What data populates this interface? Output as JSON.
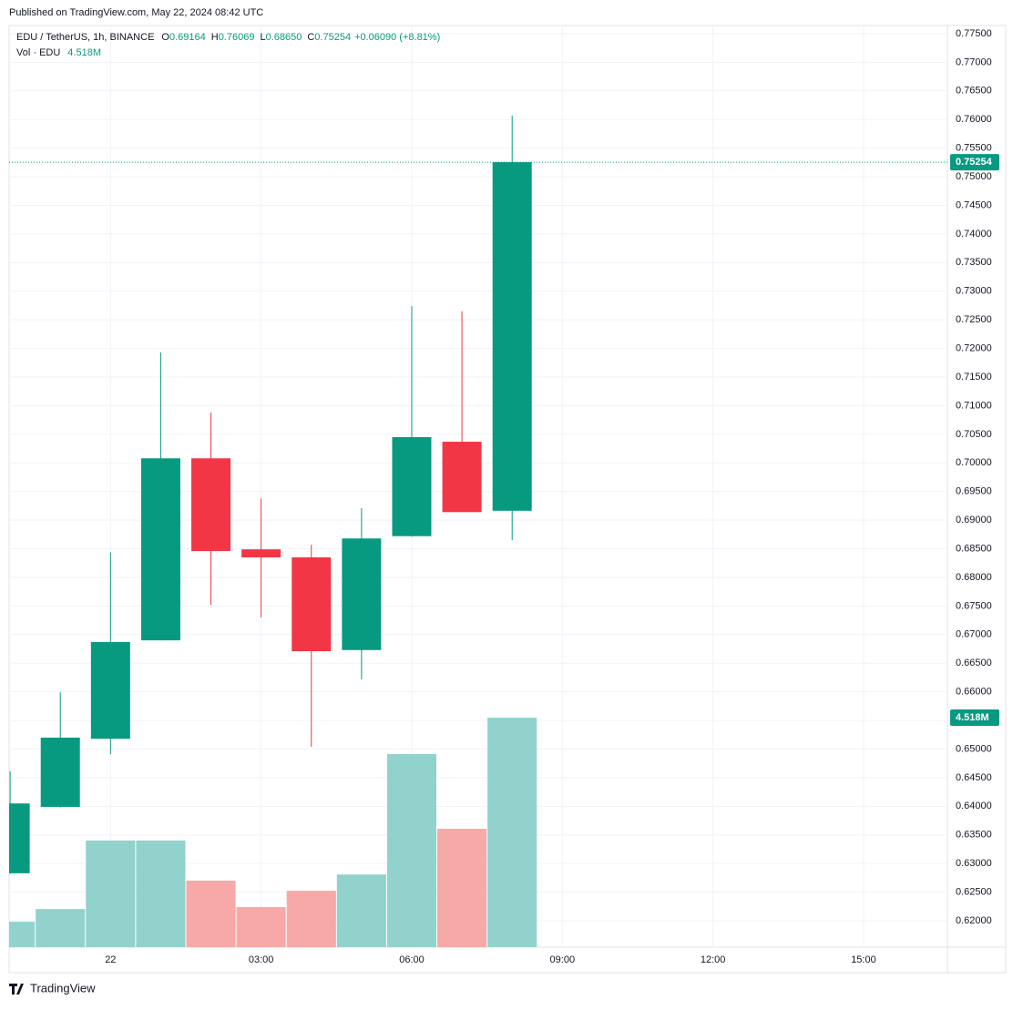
{
  "header": {
    "published": "Published on TradingView.com, May 22, 2024 08:42 UTC",
    "symbol": "EDU / TetherUS, 1h, BINANCE",
    "ohlc": [
      {
        "key": "O",
        "text": "0.69164"
      },
      {
        "key": "H",
        "text": "0.76069"
      },
      {
        "key": "L",
        "text": "0.68650"
      },
      {
        "key": "C",
        "text": "0.75254"
      }
    ],
    "change": "+0.06090 (+8.81%)"
  },
  "footer": {
    "brand": "TradingView"
  },
  "chart_data": {
    "type": "candlestick",
    "x": [
      -2,
      -1,
      0,
      1,
      2,
      3,
      4,
      5,
      6,
      7,
      8
    ],
    "open": [
      0.6283,
      0.6399,
      0.6518,
      0.669,
      0.7008,
      0.6849,
      0.6835,
      0.6673,
      0.6872,
      0.7037,
      0.69164
    ],
    "high": [
      0.6461,
      0.6599,
      0.6844,
      0.7193,
      0.7088,
      0.6938,
      0.6857,
      0.6921,
      0.7274,
      0.7265,
      0.76069
    ],
    "low": [
      0.6282,
      0.6398,
      0.6491,
      0.669,
      0.6752,
      0.673,
      0.6504,
      0.6622,
      0.6871,
      0.6914,
      0.6865
    ],
    "close": [
      0.6405,
      0.652,
      0.6687,
      0.7008,
      0.6846,
      0.6835,
      0.6671,
      0.6868,
      0.7045,
      0.6914,
      0.75254
    ],
    "up_color": "#089981",
    "down_color": "#f23645",
    "volume": {
      "name": "Vol · EDU",
      "values": [
        500000,
        750000,
        2100000,
        2100000,
        1310000,
        790000,
        1110000,
        1430000,
        3800000,
        2330000,
        4518000
      ],
      "last_label": "4.518M",
      "up_color": "#92d2cc",
      "down_color": "#f7a9a7"
    },
    "last_price": {
      "value": 0.75254,
      "label": "0.75254"
    },
    "xlim": [
      -2.02,
      16.67
    ],
    "xticks": [
      {
        "value": 0,
        "label": "22"
      },
      {
        "value": 3,
        "label": "03:00"
      },
      {
        "value": 6,
        "label": "06:00"
      },
      {
        "value": 9,
        "label": "09:00"
      },
      {
        "value": 12,
        "label": "12:00"
      },
      {
        "value": 15,
        "label": "15:00"
      }
    ],
    "ylim": [
      0.61539,
      0.78088
    ],
    "yticks": [
      {
        "value": 0.62,
        "label": "0.62000"
      },
      {
        "value": 0.625,
        "label": "0.62500"
      },
      {
        "value": 0.63,
        "label": "0.63000"
      },
      {
        "value": 0.635,
        "label": "0.63500"
      },
      {
        "value": 0.64,
        "label": "0.64000"
      },
      {
        "value": 0.645,
        "label": "0.64500"
      },
      {
        "value": 0.65,
        "label": "0.65000"
      },
      {
        "value": 0.655,
        "label": "0.65500"
      },
      {
        "value": 0.66,
        "label": "0.66000"
      },
      {
        "value": 0.665,
        "label": "0.66500"
      },
      {
        "value": 0.67,
        "label": "0.67000"
      },
      {
        "value": 0.675,
        "label": "0.67500"
      },
      {
        "value": 0.68,
        "label": "0.68000"
      },
      {
        "value": 0.685,
        "label": "0.68500"
      },
      {
        "value": 0.69,
        "label": "0.69000"
      },
      {
        "value": 0.695,
        "label": "0.69500"
      },
      {
        "value": 0.7,
        "label": "0.70000"
      },
      {
        "value": 0.705,
        "label": "0.70500"
      },
      {
        "value": 0.71,
        "label": "0.71000"
      },
      {
        "value": 0.715,
        "label": "0.71500"
      },
      {
        "value": 0.72,
        "label": "0.72000"
      },
      {
        "value": 0.725,
        "label": "0.72500"
      },
      {
        "value": 0.73,
        "label": "0.73000"
      },
      {
        "value": 0.735,
        "label": "0.73500"
      },
      {
        "value": 0.74,
        "label": "0.74000"
      },
      {
        "value": 0.745,
        "label": "0.74500"
      },
      {
        "value": 0.75,
        "label": "0.75000"
      },
      {
        "value": 0.755,
        "label": "0.75500"
      },
      {
        "value": 0.76,
        "label": "0.76000"
      },
      {
        "value": 0.765,
        "label": "0.76500"
      },
      {
        "value": 0.77,
        "label": "0.77000"
      },
      {
        "value": 0.775,
        "label": "0.77500"
      }
    ],
    "grid": true
  }
}
